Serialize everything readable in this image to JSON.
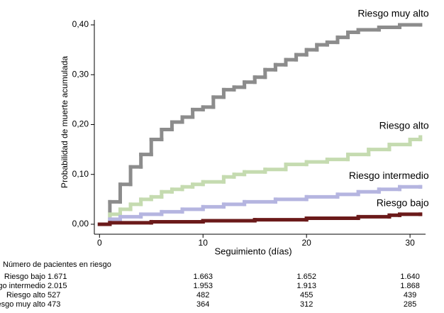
{
  "chart_data": {
    "type": "step",
    "y_label": "Probabilidad de muerte acumulada",
    "x_label": "Seguimiento (días)",
    "xlim": [
      -0.5,
      31.5
    ],
    "ylim": [
      -0.02,
      0.41
    ],
    "xticks": [
      0,
      10,
      20,
      30
    ],
    "yticks": [
      {
        "value": 0,
        "label": "0,00"
      },
      {
        "value": 0.1,
        "label": "0,10"
      },
      {
        "value": 0.2,
        "label": "0,20"
      },
      {
        "value": 0.3,
        "label": "0,30"
      },
      {
        "value": 0.4,
        "label": "0,40"
      }
    ],
    "series": [
      {
        "name": "Riesgo muy alto",
        "color": "#8c8c8c",
        "x": [
          0,
          1,
          2,
          3,
          4,
          5,
          6,
          7,
          8,
          9,
          10,
          11,
          12,
          13,
          14,
          15,
          16,
          17,
          18,
          19,
          20,
          21,
          22,
          23,
          24,
          25,
          27,
          29,
          31
        ],
        "values": [
          0,
          0.045,
          0.08,
          0.115,
          0.14,
          0.17,
          0.19,
          0.205,
          0.215,
          0.23,
          0.235,
          0.255,
          0.27,
          0.275,
          0.285,
          0.295,
          0.31,
          0.32,
          0.33,
          0.34,
          0.35,
          0.36,
          0.365,
          0.375,
          0.385,
          0.39,
          0.395,
          0.4,
          0.4
        ]
      },
      {
        "name": "Riesgo alto",
        "color": "#c5dbb0",
        "x": [
          0,
          1,
          2,
          3,
          4,
          5,
          6,
          7,
          8,
          9,
          10,
          12,
          13,
          14,
          16,
          18,
          20,
          22,
          24,
          26,
          28,
          30,
          31
        ],
        "values": [
          0,
          0.02,
          0.03,
          0.04,
          0.05,
          0.055,
          0.065,
          0.07,
          0.075,
          0.08,
          0.085,
          0.095,
          0.1,
          0.105,
          0.11,
          0.12,
          0.125,
          0.13,
          0.14,
          0.15,
          0.16,
          0.17,
          0.175
        ]
      },
      {
        "name": "Riesgo intermedio",
        "color": "#b5b5e0",
        "x": [
          0,
          1,
          2,
          4,
          6,
          8,
          10,
          12,
          14,
          17,
          20,
          23,
          25,
          27,
          29,
          31
        ],
        "values": [
          0,
          0.01,
          0.015,
          0.02,
          0.025,
          0.03,
          0.035,
          0.04,
          0.045,
          0.05,
          0.055,
          0.06,
          0.065,
          0.07,
          0.075,
          0.075
        ]
      },
      {
        "name": "Riesgo bajo",
        "color": "#6b1a1a",
        "x": [
          0,
          1,
          5,
          10,
          15,
          20,
          25,
          28,
          29,
          31
        ],
        "values": [
          0,
          0.003,
          0.005,
          0.007,
          0.009,
          0.012,
          0.015,
          0.018,
          0.02,
          0.02
        ]
      }
    ],
    "risk_table": {
      "title": "Número de pacientes en riesgo",
      "rows": [
        {
          "name": "Riesgo bajo",
          "values": [
            "1.671",
            "1.663",
            "1.652",
            "1.640"
          ]
        },
        {
          "name": "Riesgo intermedio",
          "values": [
            "2.015",
            "1.953",
            "1.913",
            "1.868"
          ]
        },
        {
          "name": "Riesgo alto",
          "values": [
            "527",
            "482",
            "455",
            "439"
          ]
        },
        {
          "name": "Riesgo muy alto",
          "values": [
            "473",
            "364",
            "312",
            "285"
          ]
        }
      ]
    }
  }
}
